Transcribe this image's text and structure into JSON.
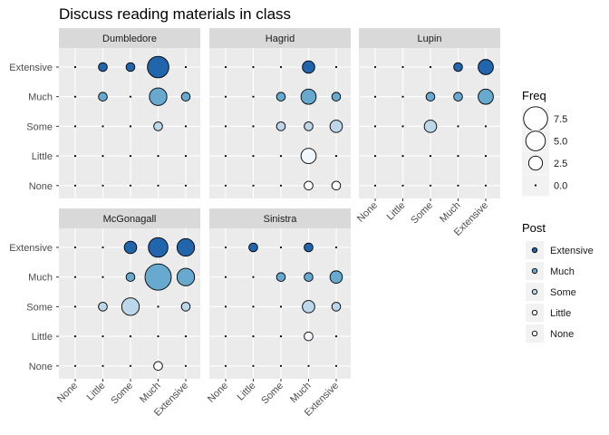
{
  "chart_data": {
    "type": "scatter",
    "title": "Discuss reading materials in class",
    "xlabel": "",
    "ylabel": "",
    "categories": [
      "None",
      "Little",
      "Some",
      "Much",
      "Extensive"
    ],
    "encoding": "x = category, y = category, point size = Freq, fill = Post",
    "panels": [
      {
        "name": "Dumbledore",
        "points": [
          {
            "x": "None",
            "y": "Extensive",
            "freq": 0,
            "post": "Extensive"
          },
          {
            "x": "Little",
            "y": "Extensive",
            "freq": 1,
            "post": "Extensive"
          },
          {
            "x": "Some",
            "y": "Extensive",
            "freq": 1,
            "post": "Extensive"
          },
          {
            "x": "Much",
            "y": "Extensive",
            "freq": 6,
            "post": "Extensive"
          },
          {
            "x": "Extensive",
            "y": "Extensive",
            "freq": 0,
            "post": "Extensive"
          },
          {
            "x": "None",
            "y": "Much",
            "freq": 0,
            "post": "Much"
          },
          {
            "x": "Little",
            "y": "Much",
            "freq": 1,
            "post": "Much"
          },
          {
            "x": "Some",
            "y": "Much",
            "freq": 0,
            "post": "Much"
          },
          {
            "x": "Much",
            "y": "Much",
            "freq": 4,
            "post": "Much"
          },
          {
            "x": "Extensive",
            "y": "Much",
            "freq": 1,
            "post": "Much"
          },
          {
            "x": "None",
            "y": "Some",
            "freq": 0,
            "post": "Some"
          },
          {
            "x": "Little",
            "y": "Some",
            "freq": 0,
            "post": "Some"
          },
          {
            "x": "Some",
            "y": "Some",
            "freq": 0,
            "post": "Some"
          },
          {
            "x": "Much",
            "y": "Some",
            "freq": 1,
            "post": "Some"
          },
          {
            "x": "Extensive",
            "y": "Some",
            "freq": 0,
            "post": "Some"
          },
          {
            "x": "None",
            "y": "Little",
            "freq": 0,
            "post": "Little"
          },
          {
            "x": "Little",
            "y": "Little",
            "freq": 0,
            "post": "Little"
          },
          {
            "x": "Some",
            "y": "Little",
            "freq": 0,
            "post": "Little"
          },
          {
            "x": "Much",
            "y": "Little",
            "freq": 0,
            "post": "Little"
          },
          {
            "x": "Extensive",
            "y": "Little",
            "freq": 0,
            "post": "Little"
          },
          {
            "x": "None",
            "y": "None",
            "freq": 0,
            "post": "None"
          },
          {
            "x": "Little",
            "y": "None",
            "freq": 0,
            "post": "None"
          },
          {
            "x": "Some",
            "y": "None",
            "freq": 0,
            "post": "None"
          },
          {
            "x": "Much",
            "y": "None",
            "freq": 0,
            "post": "None"
          },
          {
            "x": "Extensive",
            "y": "None",
            "freq": 0,
            "post": "None"
          }
        ]
      },
      {
        "name": "Hagrid",
        "points": [
          {
            "x": "None",
            "y": "Extensive",
            "freq": 0,
            "post": "Extensive"
          },
          {
            "x": "Little",
            "y": "Extensive",
            "freq": 0,
            "post": "Extensive"
          },
          {
            "x": "Some",
            "y": "Extensive",
            "freq": 0,
            "post": "Extensive"
          },
          {
            "x": "Much",
            "y": "Extensive",
            "freq": 2,
            "post": "Extensive"
          },
          {
            "x": "Extensive",
            "y": "Extensive",
            "freq": 0,
            "post": "Extensive"
          },
          {
            "x": "None",
            "y": "Much",
            "freq": 0,
            "post": "Much"
          },
          {
            "x": "Little",
            "y": "Much",
            "freq": 0,
            "post": "Much"
          },
          {
            "x": "Some",
            "y": "Much",
            "freq": 1,
            "post": "Much"
          },
          {
            "x": "Much",
            "y": "Much",
            "freq": 3,
            "post": "Much"
          },
          {
            "x": "Extensive",
            "y": "Much",
            "freq": 1,
            "post": "Much"
          },
          {
            "x": "None",
            "y": "Some",
            "freq": 0,
            "post": "Some"
          },
          {
            "x": "Little",
            "y": "Some",
            "freq": 0,
            "post": "Some"
          },
          {
            "x": "Some",
            "y": "Some",
            "freq": 1,
            "post": "Some"
          },
          {
            "x": "Much",
            "y": "Some",
            "freq": 1,
            "post": "Some"
          },
          {
            "x": "Extensive",
            "y": "Some",
            "freq": 2,
            "post": "Some"
          },
          {
            "x": "None",
            "y": "Little",
            "freq": 0,
            "post": "Little"
          },
          {
            "x": "Little",
            "y": "Little",
            "freq": 0,
            "post": "Little"
          },
          {
            "x": "Some",
            "y": "Little",
            "freq": 0,
            "post": "Little"
          },
          {
            "x": "Much",
            "y": "Little",
            "freq": 3,
            "post": "Little"
          },
          {
            "x": "Extensive",
            "y": "Little",
            "freq": 0,
            "post": "Little"
          },
          {
            "x": "None",
            "y": "None",
            "freq": 0,
            "post": "None"
          },
          {
            "x": "Little",
            "y": "None",
            "freq": 0,
            "post": "None"
          },
          {
            "x": "Some",
            "y": "None",
            "freq": 0,
            "post": "None"
          },
          {
            "x": "Much",
            "y": "None",
            "freq": 1,
            "post": "None"
          },
          {
            "x": "Extensive",
            "y": "None",
            "freq": 1,
            "post": "None"
          }
        ]
      },
      {
        "name": "Lupin",
        "points": [
          {
            "x": "None",
            "y": "Extensive",
            "freq": 0,
            "post": "Extensive"
          },
          {
            "x": "Little",
            "y": "Extensive",
            "freq": 0,
            "post": "Extensive"
          },
          {
            "x": "Some",
            "y": "Extensive",
            "freq": 0,
            "post": "Extensive"
          },
          {
            "x": "Much",
            "y": "Extensive",
            "freq": 1,
            "post": "Extensive"
          },
          {
            "x": "Extensive",
            "y": "Extensive",
            "freq": 3,
            "post": "Extensive"
          },
          {
            "x": "None",
            "y": "Much",
            "freq": 0,
            "post": "Much"
          },
          {
            "x": "Little",
            "y": "Much",
            "freq": 0,
            "post": "Much"
          },
          {
            "x": "Some",
            "y": "Much",
            "freq": 1,
            "post": "Much"
          },
          {
            "x": "Much",
            "y": "Much",
            "freq": 1,
            "post": "Much"
          },
          {
            "x": "Extensive",
            "y": "Much",
            "freq": 3,
            "post": "Much"
          },
          {
            "x": "None",
            "y": "Some",
            "freq": 0,
            "post": "Some"
          },
          {
            "x": "Little",
            "y": "Some",
            "freq": 0,
            "post": "Some"
          },
          {
            "x": "Some",
            "y": "Some",
            "freq": 2,
            "post": "Some"
          },
          {
            "x": "Much",
            "y": "Some",
            "freq": 0,
            "post": "Some"
          },
          {
            "x": "Extensive",
            "y": "Some",
            "freq": 0,
            "post": "Some"
          },
          {
            "x": "None",
            "y": "Little",
            "freq": 0,
            "post": "Little"
          },
          {
            "x": "Little",
            "y": "Little",
            "freq": 0,
            "post": "Little"
          },
          {
            "x": "Some",
            "y": "Little",
            "freq": 0,
            "post": "Little"
          },
          {
            "x": "Much",
            "y": "Little",
            "freq": 0,
            "post": "Little"
          },
          {
            "x": "Extensive",
            "y": "Little",
            "freq": 0,
            "post": "Little"
          },
          {
            "x": "None",
            "y": "None",
            "freq": 0,
            "post": "None"
          },
          {
            "x": "Little",
            "y": "None",
            "freq": 0,
            "post": "None"
          },
          {
            "x": "Some",
            "y": "None",
            "freq": 0,
            "post": "None"
          },
          {
            "x": "Much",
            "y": "None",
            "freq": 0,
            "post": "None"
          },
          {
            "x": "Extensive",
            "y": "None",
            "freq": 0,
            "post": "None"
          }
        ]
      },
      {
        "name": "McGonagall",
        "points": [
          {
            "x": "None",
            "y": "Extensive",
            "freq": 0,
            "post": "Extensive"
          },
          {
            "x": "Little",
            "y": "Extensive",
            "freq": 0,
            "post": "Extensive"
          },
          {
            "x": "Some",
            "y": "Extensive",
            "freq": 2,
            "post": "Extensive"
          },
          {
            "x": "Much",
            "y": "Extensive",
            "freq": 5,
            "post": "Extensive"
          },
          {
            "x": "Extensive",
            "y": "Extensive",
            "freq": 4,
            "post": "Extensive"
          },
          {
            "x": "None",
            "y": "Much",
            "freq": 0,
            "post": "Much"
          },
          {
            "x": "Little",
            "y": "Much",
            "freq": 0,
            "post": "Much"
          },
          {
            "x": "Some",
            "y": "Much",
            "freq": 1,
            "post": "Much"
          },
          {
            "x": "Much",
            "y": "Much",
            "freq": 9,
            "post": "Much"
          },
          {
            "x": "Extensive",
            "y": "Much",
            "freq": 4,
            "post": "Much"
          },
          {
            "x": "None",
            "y": "Some",
            "freq": 0,
            "post": "Some"
          },
          {
            "x": "Little",
            "y": "Some",
            "freq": 1,
            "post": "Some"
          },
          {
            "x": "Some",
            "y": "Some",
            "freq": 4,
            "post": "Some"
          },
          {
            "x": "Much",
            "y": "Some",
            "freq": 0,
            "post": "Some"
          },
          {
            "x": "Extensive",
            "y": "Some",
            "freq": 1,
            "post": "Some"
          },
          {
            "x": "None",
            "y": "Little",
            "freq": 0,
            "post": "Little"
          },
          {
            "x": "Little",
            "y": "Little",
            "freq": 0,
            "post": "Little"
          },
          {
            "x": "Some",
            "y": "Little",
            "freq": 0,
            "post": "Little"
          },
          {
            "x": "Much",
            "y": "Little",
            "freq": 0,
            "post": "Little"
          },
          {
            "x": "Extensive",
            "y": "Little",
            "freq": 0,
            "post": "Little"
          },
          {
            "x": "None",
            "y": "None",
            "freq": 0,
            "post": "None"
          },
          {
            "x": "Little",
            "y": "None",
            "freq": 0,
            "post": "None"
          },
          {
            "x": "Some",
            "y": "None",
            "freq": 0,
            "post": "None"
          },
          {
            "x": "Much",
            "y": "None",
            "freq": 1,
            "post": "None"
          },
          {
            "x": "Extensive",
            "y": "None",
            "freq": 0,
            "post": "None"
          }
        ]
      },
      {
        "name": "Sinistra",
        "points": [
          {
            "x": "None",
            "y": "Extensive",
            "freq": 0,
            "post": "Extensive"
          },
          {
            "x": "Little",
            "y": "Extensive",
            "freq": 1,
            "post": "Extensive"
          },
          {
            "x": "Some",
            "y": "Extensive",
            "freq": 0,
            "post": "Extensive"
          },
          {
            "x": "Much",
            "y": "Extensive",
            "freq": 1,
            "post": "Extensive"
          },
          {
            "x": "Extensive",
            "y": "Extensive",
            "freq": 0,
            "post": "Extensive"
          },
          {
            "x": "None",
            "y": "Much",
            "freq": 0,
            "post": "Much"
          },
          {
            "x": "Little",
            "y": "Much",
            "freq": 0,
            "post": "Much"
          },
          {
            "x": "Some",
            "y": "Much",
            "freq": 1,
            "post": "Much"
          },
          {
            "x": "Much",
            "y": "Much",
            "freq": 1,
            "post": "Much"
          },
          {
            "x": "Extensive",
            "y": "Much",
            "freq": 2,
            "post": "Much"
          },
          {
            "x": "None",
            "y": "Some",
            "freq": 0,
            "post": "Some"
          },
          {
            "x": "Little",
            "y": "Some",
            "freq": 0,
            "post": "Some"
          },
          {
            "x": "Some",
            "y": "Some",
            "freq": 0,
            "post": "Some"
          },
          {
            "x": "Much",
            "y": "Some",
            "freq": 2,
            "post": "Some"
          },
          {
            "x": "Extensive",
            "y": "Some",
            "freq": 1,
            "post": "Some"
          },
          {
            "x": "None",
            "y": "Little",
            "freq": 0,
            "post": "Little"
          },
          {
            "x": "Little",
            "y": "Little",
            "freq": 0,
            "post": "Little"
          },
          {
            "x": "Some",
            "y": "Little",
            "freq": 0,
            "post": "Little"
          },
          {
            "x": "Much",
            "y": "Little",
            "freq": 1,
            "post": "Little"
          },
          {
            "x": "Extensive",
            "y": "Little",
            "freq": 0,
            "post": "Little"
          },
          {
            "x": "None",
            "y": "None",
            "freq": 0,
            "post": "None"
          },
          {
            "x": "Little",
            "y": "None",
            "freq": 0,
            "post": "None"
          },
          {
            "x": "Some",
            "y": "None",
            "freq": 0,
            "post": "None"
          },
          {
            "x": "Much",
            "y": "None",
            "freq": 0,
            "post": "None"
          },
          {
            "x": "Extensive",
            "y": "None",
            "freq": 0,
            "post": "None"
          }
        ]
      }
    ],
    "legend": {
      "placement": "right",
      "size": {
        "title": "Freq",
        "breaks": [
          7.5,
          5.0,
          2.5,
          0.0
        ],
        "labels": [
          "7.5",
          "5.0",
          "2.5",
          "0.0"
        ]
      },
      "fill": {
        "title": "Post",
        "labels": [
          "Extensive",
          "Much",
          "Some",
          "Little",
          "None"
        ]
      }
    },
    "colors": {
      "Extensive": "#2166ac",
      "Much": "#67a9cf",
      "Some": "#bcd7ea",
      "Little": "#f2f7fc",
      "None": "#ffffff",
      "panel_background": "#ebebeb",
      "strip_background": "#d9d9d9",
      "grid": "#ffffff"
    },
    "grid": true
  }
}
